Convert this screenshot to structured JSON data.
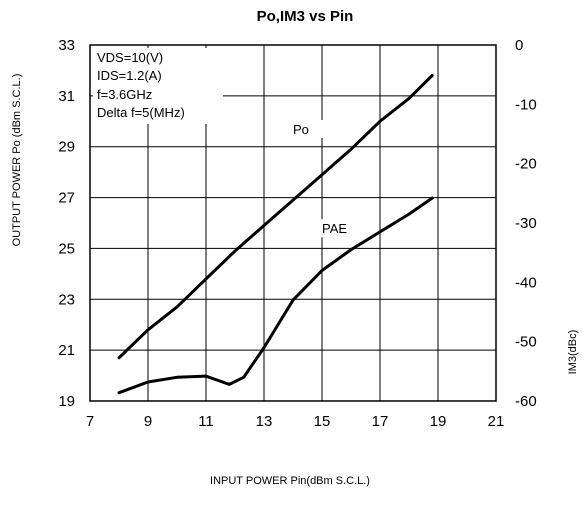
{
  "chart_data": {
    "type": "line",
    "title": "Po,IM3 vs Pin",
    "xlabel": "INPUT POWER Pin(dBm S.C.L.)",
    "ylabel": "OUTPUT POWER Po (dBm S.C.L.)",
    "y2label": "IM3(dBc)",
    "xlim": [
      7,
      21
    ],
    "ylim": [
      19,
      33
    ],
    "y2lim": [
      -60,
      0
    ],
    "x_ticks": [
      7,
      9,
      11,
      13,
      15,
      17,
      19,
      21
    ],
    "y_ticks": [
      19,
      21,
      23,
      25,
      27,
      29,
      31,
      33
    ],
    "y2_ticks": [
      -60,
      -50,
      -40,
      -30,
      -20,
      -10,
      0
    ],
    "grid": true,
    "annotations": [
      "VDS=10(V)",
      "IDS=1.2(A)",
      "f=3.6GHz",
      "Delta f=5(MHz)"
    ],
    "series": [
      {
        "name": "Po",
        "axis": "left",
        "x": [
          8.0,
          9.0,
          10.0,
          11.0,
          12.0,
          13.0,
          14.0,
          15.0,
          16.0,
          17.0,
          18.0,
          18.8
        ],
        "y": [
          20.7,
          21.8,
          22.7,
          23.8,
          24.9,
          25.9,
          26.9,
          27.9,
          28.9,
          30.0,
          30.9,
          31.8
        ]
      },
      {
        "name": "PAE",
        "axis": "right",
        "x": [
          8.0,
          9.0,
          10.0,
          11.0,
          11.8,
          12.3,
          13.0,
          14.0,
          15.0,
          16.0,
          17.0,
          18.0,
          18.8
        ],
        "y": [
          -58.6,
          -56.8,
          -56.0,
          -55.8,
          -57.2,
          -56.0,
          -51.0,
          -43.0,
          -38.0,
          -34.5,
          -31.5,
          -28.5,
          -25.8
        ]
      }
    ]
  }
}
